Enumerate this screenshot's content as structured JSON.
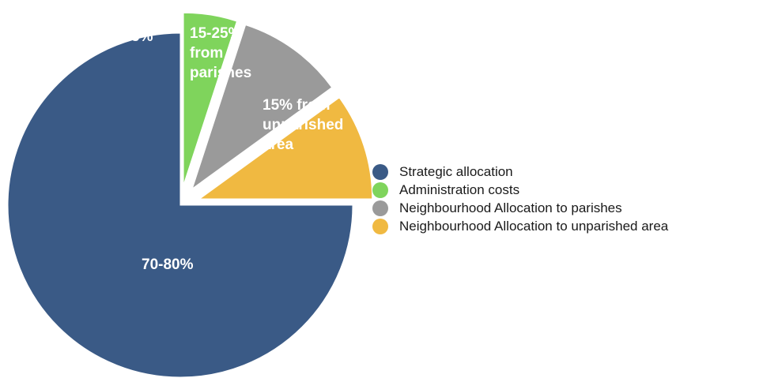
{
  "chart_data": {
    "type": "pie",
    "slices": [
      {
        "name": "Strategic allocation",
        "value": 75,
        "label": "70-80%",
        "color": "#3a5a86",
        "exploded": false
      },
      {
        "name": "Administration costs",
        "value": 5,
        "label": "5%",
        "color": "#7fd45c",
        "exploded": true
      },
      {
        "name": "Neighbourhood Allocation to parishes",
        "value": 10,
        "label_lines": [
          "15-25%",
          "from",
          "parishes"
        ],
        "color": "#9a9a9a",
        "exploded": true
      },
      {
        "name": "Neighbourhood Allocation to unparished area",
        "value": 10,
        "label_lines": [
          "15% from",
          "unparished",
          "area"
        ],
        "color": "#f0b941",
        "exploded": true
      }
    ],
    "legend": {
      "placement": "right",
      "entries": [
        {
          "label": "Strategic allocation",
          "color": "#3a5a86"
        },
        {
          "label": "Administration costs",
          "color": "#7fd45c"
        },
        {
          "label": "Neighbourhood Allocation to parishes",
          "color": "#9a9a9a"
        },
        {
          "label": "Neighbourhood Allocation to unparished area",
          "color": "#f0b941"
        }
      ]
    }
  }
}
